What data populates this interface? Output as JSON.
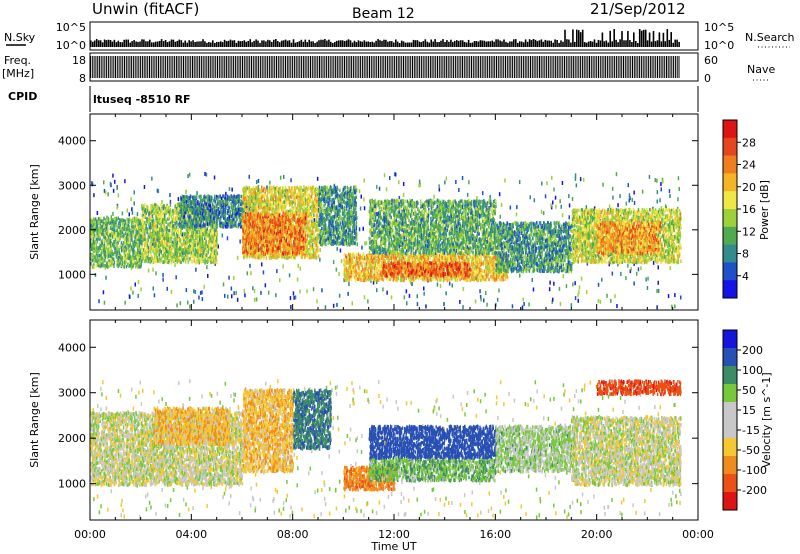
{
  "header": {
    "station": "Unwin (fitACF)",
    "beam": "Beam 12",
    "date": "21/Sep/2012"
  },
  "strips": {
    "nsky_label": "N.Sky",
    "nsky_ticks": [
      "10^5",
      "10^0"
    ],
    "nsearch_label": "N.Search",
    "freq_label": "Freq.",
    "freq_unit": "[MHz]",
    "freq_ticks": [
      "18",
      "8"
    ],
    "nave_ticks": [
      "60",
      "0"
    ],
    "nave_label": "Nave",
    "cpid_label": "CPID",
    "cpid_value": "ltuseq -8510 RF"
  },
  "colors": {
    "power": [
      "#1414e6",
      "#1e50c8",
      "#328c8c",
      "#50aa50",
      "#9bd23c",
      "#f0e646",
      "#f5b428",
      "#f07d1e",
      "#e6461e",
      "#dc1414"
    ],
    "velocity": [
      "#1414dc",
      "#2850b4",
      "#3c8c64",
      "#78c83c",
      "#c8c8c8",
      "#c8c8c8",
      "#f5c832",
      "#f08c1e",
      "#eb5014",
      "#dc1414"
    ]
  },
  "chart_data": [
    {
      "type": "heatmap",
      "title": "Power",
      "xlabel": "Time UT",
      "ylabel": "Slant Range [km]",
      "x_ticks": [
        "00:00",
        "04:00",
        "08:00",
        "12:00",
        "16:00",
        "20:00",
        "00:00"
      ],
      "xlim_hours": [
        0,
        24
      ],
      "y_ticks": [
        1000,
        2000,
        3000,
        4000
      ],
      "ylim": [
        200,
        4600
      ],
      "colorbar": {
        "label": "Power [dB]",
        "ticks": [
          4,
          8,
          12,
          16,
          20,
          24,
          28
        ],
        "range": [
          0,
          32
        ]
      },
      "regions": [
        {
          "t": [
            0.0,
            2.0
          ],
          "r": [
            1200,
            2300
          ],
          "level": 0.38
        },
        {
          "t": [
            2.0,
            5.0
          ],
          "r": [
            1300,
            2600
          ],
          "level": 0.45
        },
        {
          "t": [
            3.5,
            6.5
          ],
          "r": [
            2100,
            2800
          ],
          "level": 0.25
        },
        {
          "t": [
            6.0,
            9.0
          ],
          "r": [
            1400,
            3000
          ],
          "level": 0.55
        },
        {
          "t": [
            6.0,
            8.5
          ],
          "r": [
            1500,
            2400
          ],
          "level": 0.75
        },
        {
          "t": [
            9.0,
            10.5
          ],
          "r": [
            1700,
            3000
          ],
          "level": 0.3
        },
        {
          "t": [
            10.0,
            16.5
          ],
          "r": [
            900,
            1500
          ],
          "level": 0.62
        },
        {
          "t": [
            11.5,
            15.0
          ],
          "r": [
            1000,
            1300
          ],
          "level": 0.8
        },
        {
          "t": [
            11.0,
            16.0
          ],
          "r": [
            1500,
            2700
          ],
          "level": 0.35
        },
        {
          "t": [
            16.0,
            19.0
          ],
          "r": [
            1100,
            2200
          ],
          "level": 0.3
        },
        {
          "t": [
            19.0,
            23.3
          ],
          "r": [
            1300,
            2500
          ],
          "level": 0.5
        },
        {
          "t": [
            20.0,
            22.5
          ],
          "r": [
            1500,
            2200
          ],
          "level": 0.7
        }
      ]
    },
    {
      "type": "heatmap",
      "title": "Velocity",
      "xlabel": "Time UT",
      "ylabel": "Slant Range [km]",
      "x_ticks": [
        "00:00",
        "04:00",
        "08:00",
        "12:00",
        "16:00",
        "20:00",
        "00:00"
      ],
      "xlim_hours": [
        0,
        24
      ],
      "y_ticks": [
        1000,
        2000,
        3000,
        4000
      ],
      "ylim": [
        200,
        4600
      ],
      "colorbar": {
        "label": "Velocity [m s^-1]",
        "ticks": [
          "200",
          "100",
          "50",
          "15",
          "-15",
          "-50",
          "-100",
          "-200"
        ]
      },
      "regions": [
        {
          "t": [
            0.0,
            6.0
          ],
          "r": [
            1000,
            2600
          ],
          "velocity": 0
        },
        {
          "t": [
            2.5,
            5.5
          ],
          "r": [
            1900,
            2700
          ],
          "velocity": -40
        },
        {
          "t": [
            6.0,
            8.0
          ],
          "r": [
            1300,
            3100
          ],
          "velocity": -40
        },
        {
          "t": [
            8.0,
            9.5
          ],
          "r": [
            1800,
            3100
          ],
          "velocity": 90
        },
        {
          "t": [
            10.0,
            12.0
          ],
          "r": [
            900,
            1400
          ],
          "velocity": -80
        },
        {
          "t": [
            11.0,
            16.0
          ],
          "r": [
            1100,
            1600
          ],
          "velocity": 40
        },
        {
          "t": [
            11.0,
            16.0
          ],
          "r": [
            1600,
            2300
          ],
          "velocity": 140
        },
        {
          "t": [
            16.0,
            19.0
          ],
          "r": [
            1300,
            2300
          ],
          "velocity": 20
        },
        {
          "t": [
            19.0,
            23.3
          ],
          "r": [
            1000,
            2500
          ],
          "velocity": 0
        },
        {
          "t": [
            20.0,
            23.3
          ],
          "r": [
            3000,
            3300
          ],
          "velocity": -180
        }
      ]
    }
  ]
}
